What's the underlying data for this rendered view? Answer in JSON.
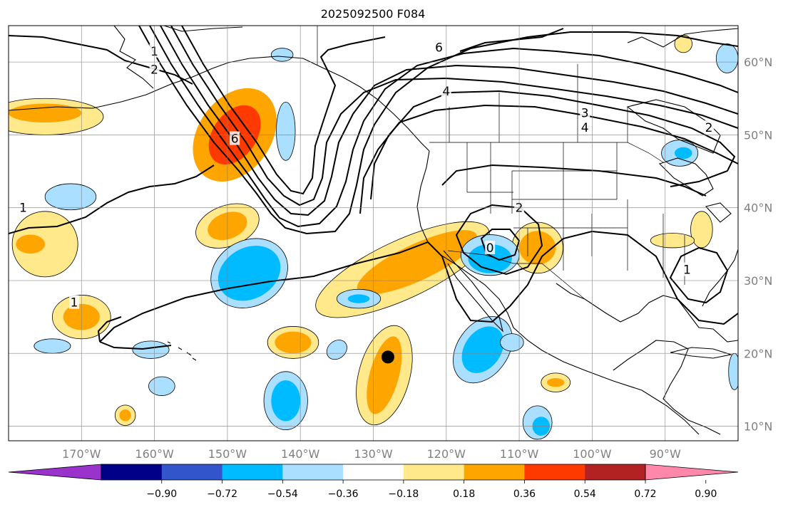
{
  "title": "2025092500 F084",
  "map": {
    "lon_labels": [
      "170°W",
      "160°W",
      "150°W",
      "140°W",
      "130°W",
      "120°W",
      "110°W",
      "100°W",
      "90°W"
    ],
    "lat_labels": [
      "60°N",
      "50°N",
      "40°N",
      "30°N",
      "20°N",
      "10°N"
    ],
    "lon_values": [
      -170,
      -160,
      -150,
      -140,
      -130,
      -120,
      -110,
      -100,
      -90
    ],
    "lat_values": [
      60,
      50,
      40,
      30,
      20,
      10
    ],
    "lon_range": [
      -180,
      -80
    ],
    "lat_range": [
      8,
      65
    ],
    "contour_labels": [
      {
        "text": "1",
        "lon": -178,
        "lat": 40
      },
      {
        "text": "1",
        "lon": -160,
        "lat": 61.5
      },
      {
        "text": "2",
        "lon": -160,
        "lat": 59
      },
      {
        "text": "6",
        "lon": -121,
        "lat": 62
      },
      {
        "text": "4",
        "lon": -120,
        "lat": 56
      },
      {
        "text": "3",
        "lon": -101,
        "lat": 53
      },
      {
        "text": "4",
        "lon": -101,
        "lat": 51
      },
      {
        "text": "2",
        "lon": -84,
        "lat": 51
      },
      {
        "text": "6",
        "lon": -149,
        "lat": 49.5
      },
      {
        "text": "2",
        "lon": -110,
        "lat": 40
      },
      {
        "text": "0",
        "lon": -114,
        "lat": 34.5
      },
      {
        "text": "1",
        "lon": -171,
        "lat": 27
      },
      {
        "text": "1",
        "lon": -87,
        "lat": 31.5
      }
    ],
    "marker": {
      "lon": -128,
      "lat": 19.5
    },
    "colors": {
      "contour": "#000000",
      "grid": "#808080"
    }
  },
  "colorbar": {
    "tick_labels": [
      "−0.90",
      "−0.72",
      "−0.54",
      "−0.36",
      "−0.18",
      "0.18",
      "0.36",
      "0.54",
      "0.72",
      "0.90"
    ],
    "colors": [
      "#9933cc",
      "#000088",
      "#3355cc",
      "#00bbff",
      "#aadfff",
      "#ffffff",
      "#ffe98a",
      "#ffa500",
      "#ff3a00",
      "#b22222",
      "#ff88aa"
    ],
    "extend": "both"
  },
  "chart_data": {
    "type": "heatmap",
    "title": "2025092500 F084",
    "xlabel": "",
    "ylabel": "",
    "x_ticks": [
      "170°W",
      "160°W",
      "150°W",
      "140°W",
      "130°W",
      "120°W",
      "110°W",
      "100°W",
      "90°W"
    ],
    "y_ticks": [
      "60°N",
      "50°N",
      "40°N",
      "30°N",
      "20°N",
      "10°N"
    ],
    "xlim": [
      -180,
      -80
    ],
    "ylim": [
      8,
      65
    ],
    "color_levels": [
      -0.9,
      -0.72,
      -0.54,
      -0.36,
      -0.18,
      0.18,
      0.36,
      0.54,
      0.72,
      0.9
    ],
    "contour_levels": [
      0,
      1,
      2,
      3,
      4,
      5,
      6
    ],
    "anomaly_regions": [
      {
        "lon": -149,
        "lat": 50,
        "rx": 5,
        "ry": 7,
        "level": 0.36,
        "rot": 35
      },
      {
        "lon": -149,
        "lat": 50,
        "rx": 3,
        "ry": 4.5,
        "level": 0.54,
        "rot": 35
      },
      {
        "lon": -175,
        "lat": 52.5,
        "rx": 8,
        "ry": 2.5,
        "level": 0.18,
        "rot": 0
      },
      {
        "lon": -175,
        "lat": 53,
        "rx": 5,
        "ry": 1.3,
        "level": 0.36,
        "rot": 0
      },
      {
        "lon": -175,
        "lat": 35,
        "rx": 4.5,
        "ry": 4.5,
        "level": 0.18,
        "rot": 0
      },
      {
        "lon": -177,
        "lat": 35,
        "rx": 2,
        "ry": 1.3,
        "level": 0.36,
        "rot": 0
      },
      {
        "lon": -150,
        "lat": 37.5,
        "rx": 4.5,
        "ry": 2.8,
        "level": 0.18,
        "rot": -20
      },
      {
        "lon": -150,
        "lat": 37.5,
        "rx": 2.8,
        "ry": 1.8,
        "level": 0.36,
        "rot": -20
      },
      {
        "lon": -170,
        "lat": 25,
        "rx": 4,
        "ry": 3,
        "level": 0.18,
        "rot": 0
      },
      {
        "lon": -170,
        "lat": 25,
        "rx": 2.5,
        "ry": 1.8,
        "level": 0.36,
        "rot": 0
      },
      {
        "lon": -126,
        "lat": 31.5,
        "rx": 13,
        "ry": 4,
        "level": 0.18,
        "rot": -25
      },
      {
        "lon": -124,
        "lat": 32.5,
        "rx": 9,
        "ry": 2.5,
        "level": 0.36,
        "rot": -25
      },
      {
        "lon": -141,
        "lat": 21.5,
        "rx": 3.5,
        "ry": 2.2,
        "level": 0.18,
        "rot": 0
      },
      {
        "lon": -141,
        "lat": 21.5,
        "rx": 2.5,
        "ry": 1.5,
        "level": 0.36,
        "rot": 0
      },
      {
        "lon": -128.5,
        "lat": 17,
        "rx": 3.5,
        "ry": 7,
        "level": 0.18,
        "rot": 15
      },
      {
        "lon": -128.5,
        "lat": 17,
        "rx": 2,
        "ry": 5.5,
        "level": 0.36,
        "rot": 15
      },
      {
        "lon": -107.5,
        "lat": 34.5,
        "rx": 3.5,
        "ry": 3.5,
        "level": 0.18,
        "rot": 0
      },
      {
        "lon": -107.5,
        "lat": 34.5,
        "rx": 2.5,
        "ry": 2.3,
        "level": 0.36,
        "rot": 0
      },
      {
        "lon": -85,
        "lat": 37,
        "rx": 1.5,
        "ry": 2.5,
        "level": 0.18,
        "rot": 0
      },
      {
        "lon": -89,
        "lat": 35.5,
        "rx": 3,
        "ry": 1,
        "level": 0.18,
        "rot": 0
      },
      {
        "lon": -105,
        "lat": 16,
        "rx": 2,
        "ry": 1.3,
        "level": 0.18,
        "rot": 0
      },
      {
        "lon": -105,
        "lat": 16,
        "rx": 1.2,
        "ry": 0.6,
        "level": 0.36,
        "rot": 0
      },
      {
        "lon": -164,
        "lat": 11.5,
        "rx": 1.4,
        "ry": 1.4,
        "level": 0.18,
        "rot": 0
      },
      {
        "lon": -164,
        "lat": 11.5,
        "rx": 0.8,
        "ry": 0.8,
        "level": 0.36,
        "rot": 0
      },
      {
        "lon": -87.5,
        "lat": 62.5,
        "rx": 1.2,
        "ry": 1.2,
        "level": 0.18,
        "rot": 0
      },
      {
        "lon": -147,
        "lat": 31,
        "rx": 5.5,
        "ry": 4.5,
        "level": -0.18,
        "rot": -30
      },
      {
        "lon": -147,
        "lat": 31,
        "rx": 4.5,
        "ry": 3.5,
        "level": -0.36,
        "rot": -30
      },
      {
        "lon": -114,
        "lat": 33.5,
        "rx": 4,
        "ry": 2.8,
        "level": -0.18,
        "rot": 0
      },
      {
        "lon": -114,
        "lat": 33,
        "rx": 3,
        "ry": 2,
        "level": -0.36,
        "rot": 0
      },
      {
        "lon": -115,
        "lat": 20.5,
        "rx": 3.5,
        "ry": 5,
        "level": -0.18,
        "rot": 35
      },
      {
        "lon": -115,
        "lat": 20.5,
        "rx": 2.5,
        "ry": 3.5,
        "level": -0.36,
        "rot": 35
      },
      {
        "lon": -142,
        "lat": 13.5,
        "rx": 3,
        "ry": 4,
        "level": -0.18,
        "rot": 0
      },
      {
        "lon": -142,
        "lat": 13.5,
        "rx": 2,
        "ry": 2.8,
        "level": -0.36,
        "rot": 0
      },
      {
        "lon": -107.5,
        "lat": 10.5,
        "rx": 2,
        "ry": 2.3,
        "level": -0.18,
        "rot": 0
      },
      {
        "lon": -107,
        "lat": 10,
        "rx": 1.2,
        "ry": 1.3,
        "level": -0.36,
        "rot": 0
      },
      {
        "lon": -132,
        "lat": 27.5,
        "rx": 3,
        "ry": 1.3,
        "level": -0.18,
        "rot": 0
      },
      {
        "lon": -132,
        "lat": 27.5,
        "rx": 1.5,
        "ry": 0.6,
        "level": -0.36,
        "rot": 0
      },
      {
        "lon": -88,
        "lat": 47.5,
        "rx": 2.5,
        "ry": 1.8,
        "level": -0.18,
        "rot": 0
      },
      {
        "lon": -87.5,
        "lat": 47.5,
        "rx": 1.2,
        "ry": 0.8,
        "level": -0.36,
        "rot": 0
      },
      {
        "lon": -171.5,
        "lat": 41.5,
        "rx": 3.5,
        "ry": 1.8,
        "level": -0.18,
        "rot": 0
      },
      {
        "lon": -142,
        "lat": 50.5,
        "rx": 1.3,
        "ry": 4,
        "level": -0.18,
        "rot": 0
      },
      {
        "lon": -160.5,
        "lat": 20.5,
        "rx": 2.5,
        "ry": 1.2,
        "level": -0.18,
        "rot": 0
      },
      {
        "lon": -174,
        "lat": 21,
        "rx": 2.5,
        "ry": 1,
        "level": -0.18,
        "rot": 0
      },
      {
        "lon": -111,
        "lat": 21.5,
        "rx": 1.6,
        "ry": 1.2,
        "level": -0.18,
        "rot": 0
      },
      {
        "lon": -159,
        "lat": 15.5,
        "rx": 1.8,
        "ry": 1.3,
        "level": -0.18,
        "rot": 0
      },
      {
        "lon": -135,
        "lat": 20.5,
        "rx": 1.5,
        "ry": 1.2,
        "level": -0.18,
        "rot": -40
      },
      {
        "lon": -81.5,
        "lat": 60.5,
        "rx": 1.5,
        "ry": 2,
        "level": -0.18,
        "rot": 0
      },
      {
        "lon": -80.5,
        "lat": 17.5,
        "rx": 0.8,
        "ry": 2.5,
        "level": -0.18,
        "rot": 0
      },
      {
        "lon": -142.5,
        "lat": 61,
        "rx": 1.5,
        "ry": 0.9,
        "level": -0.18,
        "rot": 0
      }
    ]
  }
}
